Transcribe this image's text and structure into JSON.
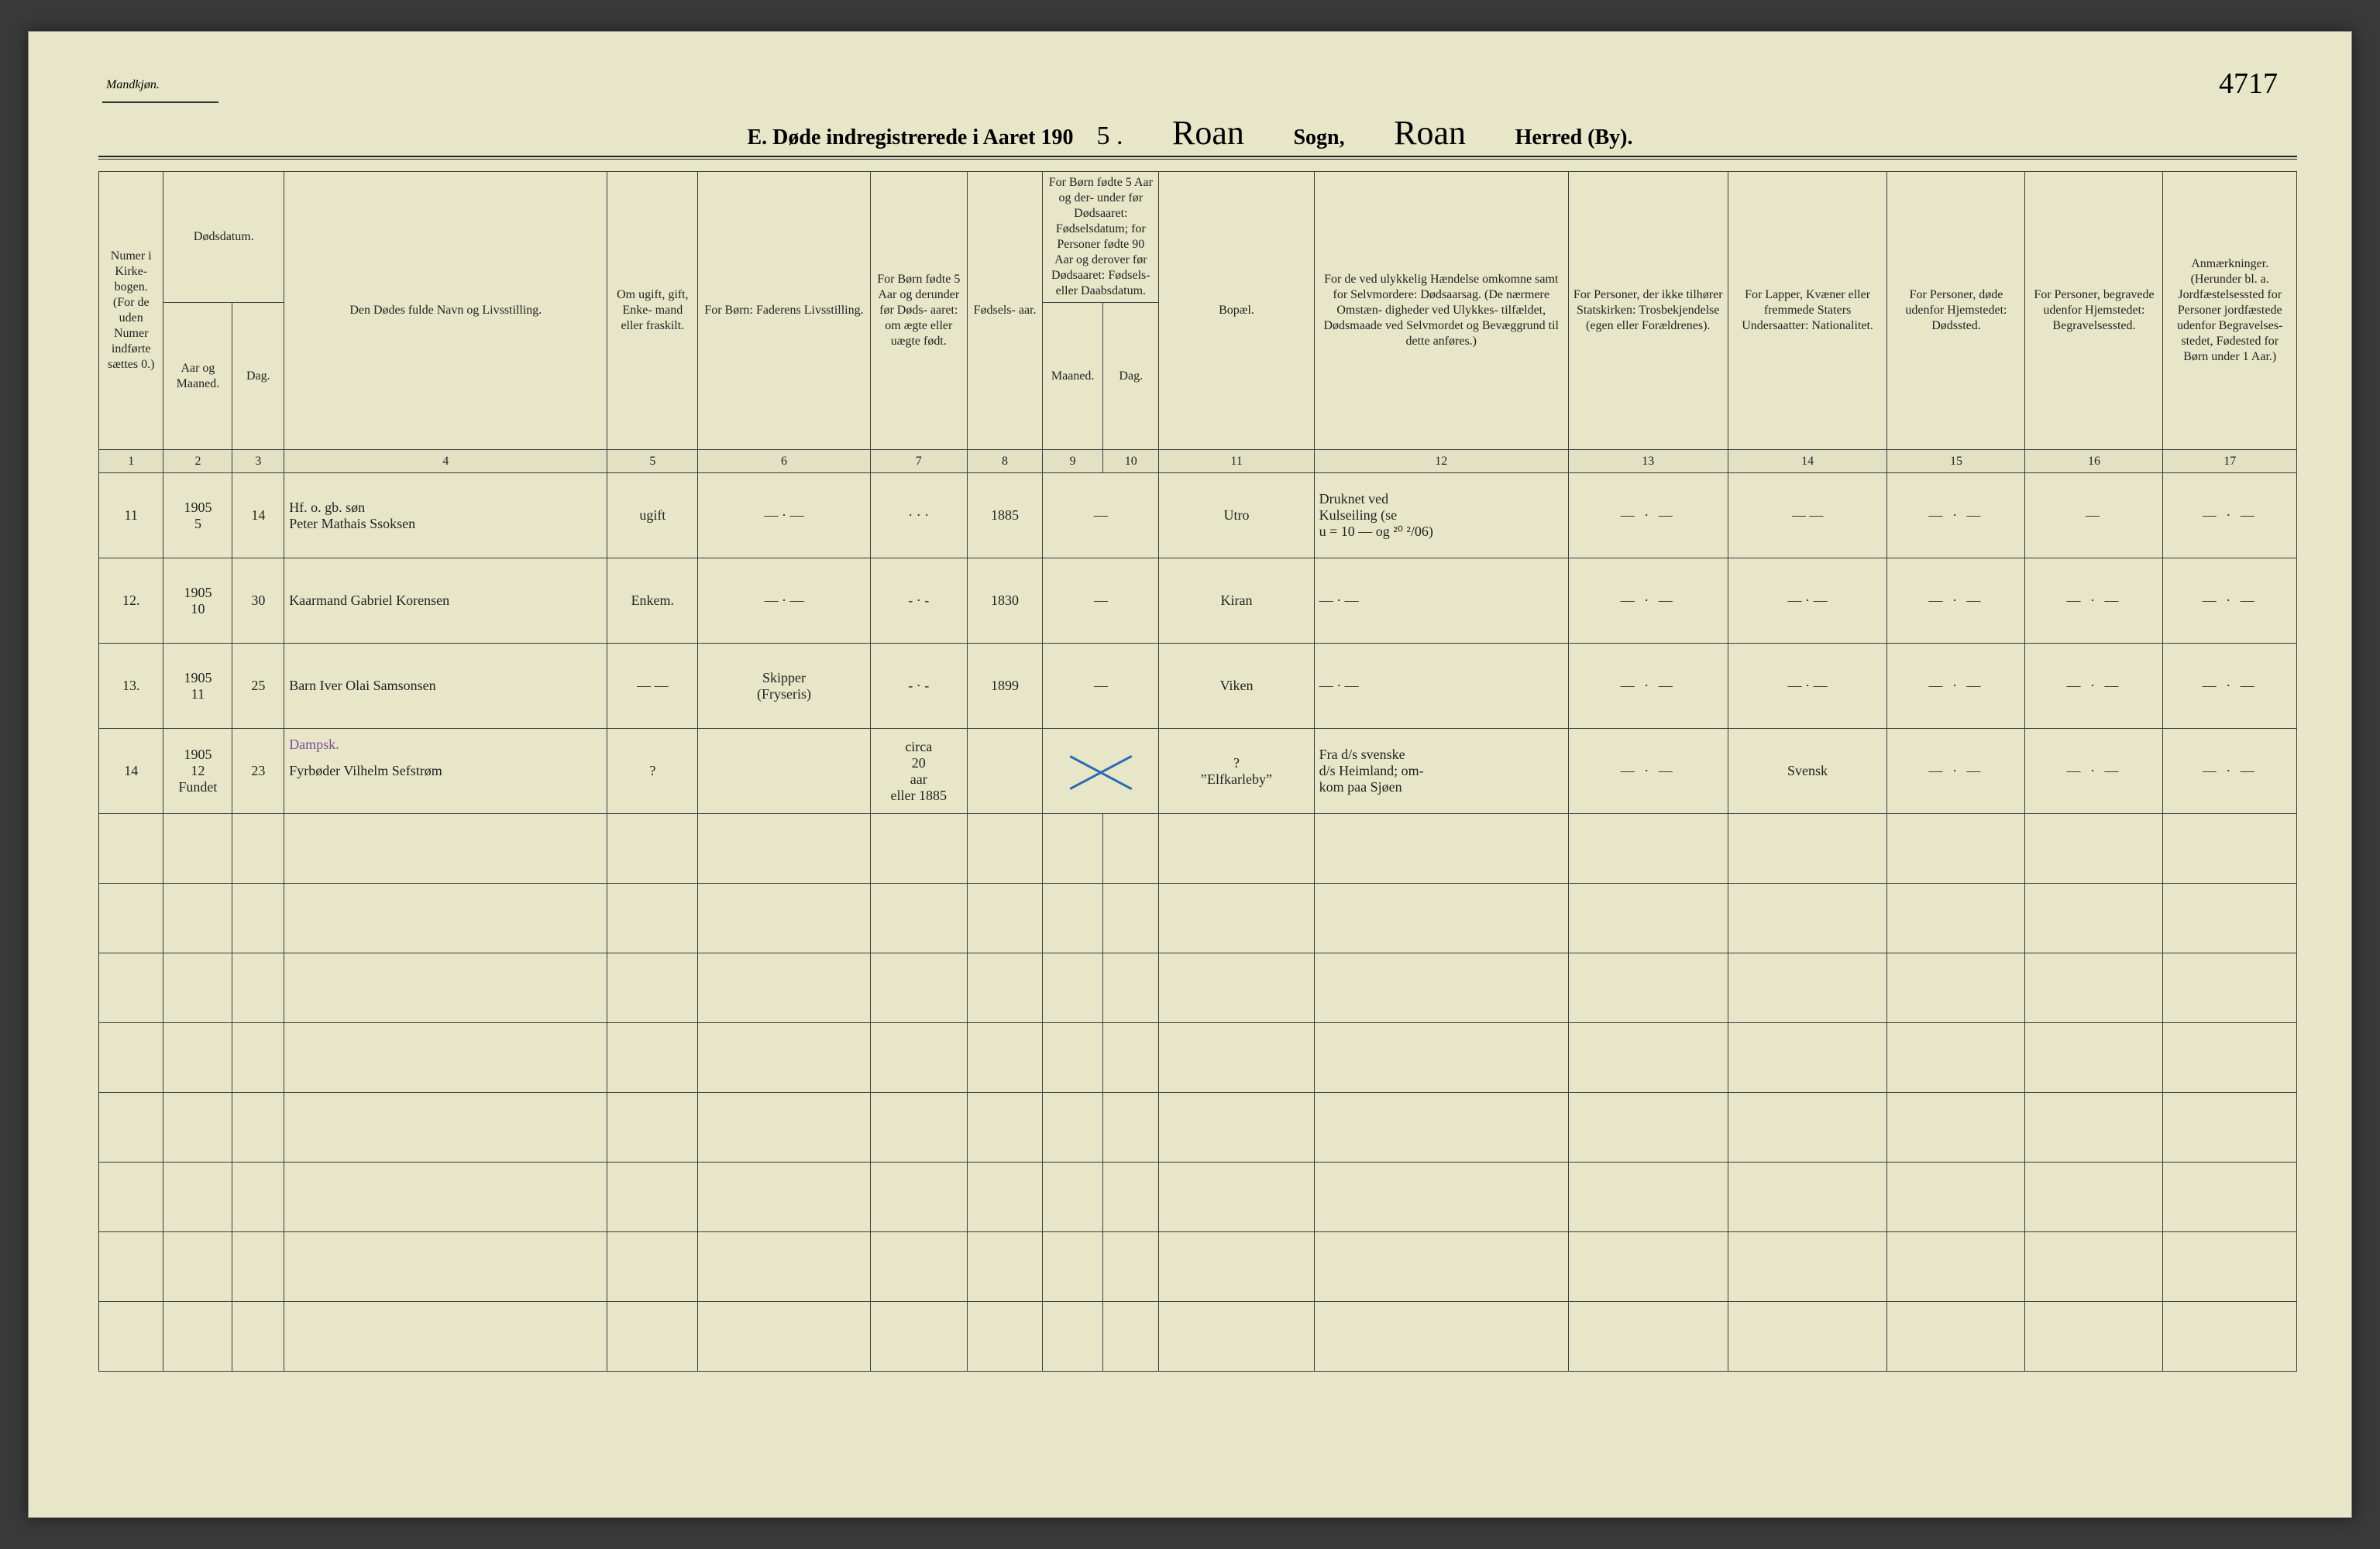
{
  "page": {
    "background_color": "#e8e6c8",
    "gender_label": "Mandkjøn.",
    "page_number_handwritten": "4717",
    "title": {
      "prefix_print": "E.  Døde indregistrerede i Aaret 190",
      "year_suffix_hand": "5 .",
      "sogn_hand": "Roan",
      "sogn_label": "Sogn,",
      "herred_hand": "Roan",
      "herred_label": "Herred (By)."
    }
  },
  "columns": {
    "c1": "Numer i Kirke- bogen. (For de uden Numer indførte sættes 0.)",
    "c2_group": "Dødsdatum.",
    "c2": "Aar og Maaned.",
    "c3": "Dag.",
    "c4": "Den Dødes fulde Navn og Livsstilling.",
    "c5": "Om ugift, gift, Enke- mand eller fraskilt.",
    "c6": "For Børn: Faderens Livsstilling.",
    "c7": "For Børn fødte 5 Aar og derunder før Døds- aaret: om ægte eller uægte født.",
    "c8": "Fødsels- aar.",
    "c9_10_group": "For Børn fødte 5 Aar og der- under før Dødsaaret: Fødselsdatum; for Personer fødte 90 Aar og derover før Dødsaaret: Fødsels- eller Daabsdatum.",
    "c9": "Maaned.",
    "c10": "Dag.",
    "c11": "Bopæl.",
    "c12": "For de ved ulykkelig Hændelse omkomne samt for Selvmordere: Dødsaarsag. (De nærmere Omstæn- digheder ved Ulykkes- tilfældet, Dødsmaade ved Selvmordet og Bevæggrund til dette anføres.)",
    "c13": "For Personer, der ikke tilhører Statskirken: Trosbekjendelse (egen eller Forældrenes).",
    "c14": "For Lapper, Kvæner eller fremmede Staters Undersaatter: Nationalitet.",
    "c15": "For Personer, døde udenfor Hjemstedet: Dødssted.",
    "c16": "For Personer, begravede udenfor Hjemstedet: Begravelsessted.",
    "c17": "Anmærkninger. (Herunder bl. a. Jordfæstelsessted for Personer jordfæstede udenfor Begravelses- stedet, Fødested for Børn under 1 Aar.)"
  },
  "colnums": [
    "1",
    "2",
    "3",
    "4",
    "5",
    "6",
    "7",
    "8",
    "9",
    "10",
    "11",
    "12",
    "13",
    "14",
    "15",
    "16",
    "17"
  ],
  "rows": [
    {
      "num": "11",
      "year_month": "1905\n5",
      "day": "14",
      "name": "Hf. o. gb. søn\nPeter Mathais Ssoksen",
      "marital": "ugift",
      "father": "— · —",
      "legit": "· · ·",
      "birthyear": "1885",
      "birth_md": "—",
      "residence": "Utro",
      "cause": "Druknet ved\nKulseiling (se\nu = 10 — og ²⁰ ²/06)",
      "faith": "— · —",
      "nationality": "— —",
      "deathplace": "— · —",
      "burialplace": "—",
      "remarks": "— · —"
    },
    {
      "num": "12.",
      "year_month": "1905\n10",
      "day": "30",
      "name": "Kaarmand  Gabriel Korensen",
      "marital": "Enkem.",
      "father": "— · —",
      "legit": "- · -",
      "birthyear": "1830",
      "birth_md": "—",
      "residence": "Kiran",
      "cause": "— · —",
      "faith": "— · —",
      "nationality": "— · —",
      "deathplace": "— · —",
      "burialplace": "— · —",
      "remarks": "— · —"
    },
    {
      "num": "13.",
      "year_month": "1905\n11",
      "day": "25",
      "name": "Barn  Iver Olai Samsonsen",
      "marital": "— —",
      "father": "Skipper\n(Fryseris)",
      "legit": "- · -",
      "birthyear": "1899",
      "birth_md": "—",
      "residence": "Viken",
      "cause": "— · —",
      "faith": "— · —",
      "nationality": "— · —",
      "deathplace": "— · —",
      "burialplace": "— · —",
      "remarks": "— · —"
    },
    {
      "num": "14",
      "year_month": "1905\n12\nFundet",
      "day": "23",
      "name_annotation": "Dampsk.",
      "name": "Fyrbøder  Vilhelm Sefstrøm",
      "marital": "?",
      "father": "",
      "legit": "circa\n20\naar\neller 1885",
      "birthyear": "",
      "birth_md_x": true,
      "residence": "?\n‟Elfkarleby”",
      "cause": "Fra d/s svenske\nd/s Heimland; om-\nkom paa Sjøen",
      "faith": "— · —",
      "nationality": "Svensk",
      "deathplace": "— · —",
      "burialplace": "— · —",
      "remarks": "— · —"
    }
  ],
  "blank_row_count": 8,
  "style": {
    "ink_color": "#3a2e1f",
    "grid_color": "#3a3a3a",
    "x_color": "#2a6bb3",
    "annotation_color": "#7a4fa0",
    "print_fontsize": 18,
    "header_fontsize": 16,
    "hand_fontsize": 26
  },
  "col_widths_pct": [
    3.0,
    3.2,
    2.4,
    15.0,
    4.2,
    8.0,
    4.5,
    3.5,
    2.8,
    2.6,
    7.2,
    11.8,
    7.4,
    7.4,
    6.4,
    6.4,
    6.2
  ]
}
